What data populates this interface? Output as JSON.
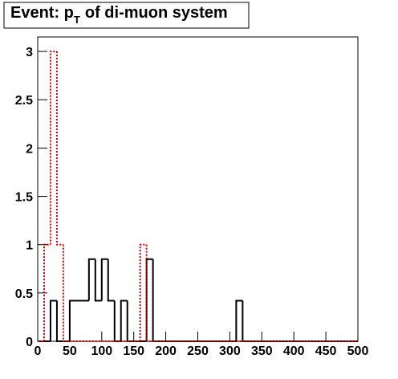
{
  "chart_data": {
    "type": "histogram",
    "title": "Event: p",
    "title_subscript": "T",
    "title_rest": "of di-muon system",
    "bins": [
      0,
      10,
      20,
      30,
      40,
      50,
      60,
      70,
      80,
      90,
      100,
      110,
      120,
      130,
      140,
      150,
      160,
      170,
      180,
      190,
      200,
      210,
      220,
      230,
      240,
      250,
      260,
      270,
      280,
      290,
      300,
      310,
      320,
      330,
      340,
      350,
      360,
      370,
      380,
      390,
      400,
      410,
      420,
      430,
      440,
      450,
      460,
      470,
      480,
      490,
      500
    ],
    "series": [
      {
        "color": "#000000",
        "style": "solid",
        "values": [
          0,
          0,
          0.42,
          0,
          0,
          0.42,
          0.42,
          0.42,
          0.85,
          0.42,
          0.85,
          0.42,
          0,
          0.42,
          0,
          0,
          0,
          0.85,
          0,
          0,
          0,
          0,
          0,
          0,
          0,
          0,
          0,
          0,
          0,
          0,
          0,
          0.42,
          0,
          0,
          0,
          0,
          0,
          0,
          0,
          0,
          0,
          0,
          0,
          0,
          0,
          0,
          0,
          0,
          0,
          0
        ]
      },
      {
        "color": "#dd0000",
        "style": "dotted",
        "values": [
          0,
          1,
          3,
          1,
          0,
          0,
          0,
          0,
          0,
          0,
          0,
          0,
          0,
          0,
          0,
          0,
          1,
          0,
          0,
          0,
          0,
          0,
          0,
          0,
          0,
          0,
          0,
          0,
          0,
          0,
          0,
          0,
          0,
          0,
          0,
          0,
          0,
          0,
          0,
          0,
          0,
          0,
          0,
          0,
          0,
          0,
          0,
          0,
          0,
          0
        ]
      }
    ],
    "xlim": [
      0,
      500
    ],
    "xticks": [
      0,
      50,
      100,
      150,
      200,
      250,
      300,
      350,
      400,
      450,
      500
    ],
    "ylim": [
      0,
      3.15
    ],
    "yticks": [
      0,
      0.5,
      1,
      1.5,
      2,
      2.5,
      3
    ]
  }
}
